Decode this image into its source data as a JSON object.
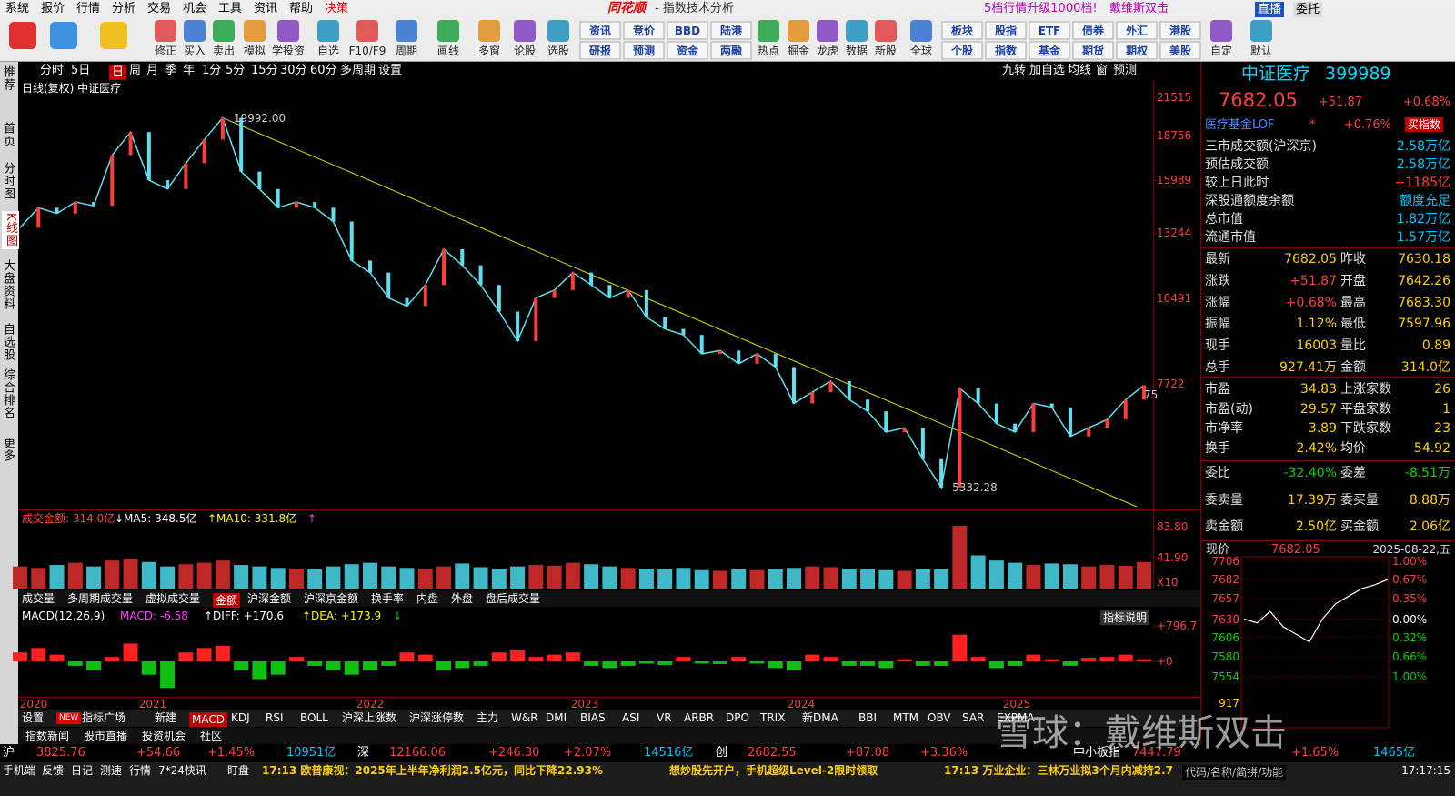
{
  "menu": {
    "items": [
      "系统",
      "报价",
      "行情",
      "分析",
      "交易",
      "机会",
      "工具",
      "资讯",
      "帮助",
      "决策"
    ],
    "logo": "同花顺",
    "title": "- 指数技术分析",
    "promo": "5档行情升级1000档!",
    "user": "戴维斯双击",
    "live": "直播",
    "trade": "委托"
  },
  "toolbar": {
    "tools": [
      "修正",
      "买入",
      "卖出",
      "模拟",
      "学投资",
      "自选",
      "F10/F9",
      "周期",
      "画线",
      "多窗",
      "论股",
      "选股"
    ],
    "grid1": [
      [
        "资讯",
        "竞价",
        "BBD",
        "陆港"
      ],
      [
        "研报",
        "预测",
        "资金",
        "两融"
      ]
    ],
    "tools2": [
      "热点",
      "掘金",
      "龙虎",
      "数据",
      "新股",
      "全球"
    ],
    "grid2": [
      [
        "板块",
        "股指",
        "ETF",
        "债券",
        "外汇",
        "港股"
      ],
      [
        "个股",
        "指数",
        "基金",
        "期货",
        "期权",
        "美股"
      ]
    ],
    "tools3": [
      "自定",
      "默认"
    ]
  },
  "side_tabs": [
    "推荐",
    "首页",
    "分时图",
    "K线图",
    "大盘资料",
    "自选股",
    "综合排名",
    "更多"
  ],
  "side_active": 3,
  "periods": {
    "items": [
      "分时",
      "5日",
      "日",
      "周",
      "月",
      "季",
      "年",
      "1分",
      "5分",
      "15分",
      "30分",
      "60分",
      "多周期",
      "设置"
    ],
    "active": 2,
    "right": [
      "九转",
      "加自选",
      "均线",
      "窗",
      "预测"
    ]
  },
  "kline": {
    "title": "日线(复权) 中证医疗",
    "ylog": true,
    "yticks": [
      21515,
      18756,
      15989,
      13244,
      10491,
      7722
    ],
    "closes": [
      13500,
      14500,
      14200,
      14800,
      14600,
      17500,
      19000,
      16000,
      15500,
      17000,
      18500,
      19992,
      16500,
      15500,
      14500,
      14800,
      14500,
      13800,
      12000,
      11500,
      10500,
      10200,
      11000,
      12500,
      11800,
      11000,
      10000,
      9000,
      10500,
      10800,
      11500,
      11000,
      10500,
      10800,
      9800,
      9400,
      9200,
      8600,
      8700,
      8300,
      8600,
      8200,
      7200,
      7500,
      7800,
      7300,
      7000,
      6500,
      6600,
      5900,
      5332,
      7600,
      7200,
      6700,
      6500,
      7200,
      7100,
      6400,
      6600,
      6800,
      7300,
      7682
    ],
    "high_label": "19992.00",
    "low_label": "5332.28",
    "last_label": "75",
    "years": [
      "2020",
      "2021",
      "2022",
      "2023",
      "2024",
      "2025"
    ]
  },
  "volume": {
    "legend": [
      {
        "text": "成交金额: 314.0亿",
        "color": "#ff4040"
      },
      {
        "text": "↓MA5: 348.5亿",
        "color": "#ffffff"
      },
      {
        "text": "↑MA10: 331.8亿",
        "color": "#ffff00"
      },
      {
        "text": "↑",
        "color": "#ff40ff"
      }
    ],
    "yticks": [
      {
        "value": 83.8,
        "label": "83.80"
      },
      {
        "value": 41.9,
        "label": "41.90"
      }
    ],
    "unit": "X10",
    "values": [
      30,
      28,
      32,
      35,
      30,
      38,
      40,
      36,
      30,
      33,
      35,
      38,
      32,
      30,
      28,
      27,
      26,
      30,
      33,
      35,
      30,
      28,
      26,
      30,
      34,
      29,
      27,
      30,
      32,
      31,
      35,
      33,
      30,
      28,
      27,
      26,
      28,
      25,
      24,
      26,
      25,
      27,
      28,
      30,
      29,
      27,
      26,
      25,
      24,
      26,
      26,
      85,
      45,
      38,
      35,
      32,
      34,
      33,
      30,
      32,
      31,
      36
    ],
    "tabs": [
      "成交量",
      "多周期成交量",
      "虚拟成交量",
      "金额",
      "沪深金额",
      "沪深京金额",
      "换手率",
      "内盘",
      "外盘",
      "盘后成交量"
    ],
    "active": 3
  },
  "macd": {
    "legend": [
      {
        "text": "MACD(12,26,9)",
        "color": "#ffffff"
      },
      {
        "text": "MACD: -6.58",
        "color": "#ff40ff"
      },
      {
        "text": "↑DIFF: +170.6",
        "color": "#ffffff"
      },
      {
        "text": "↑DEA: +173.9",
        "color": "#ffff00"
      },
      {
        "text": "↓",
        "color": "#00d200"
      }
    ],
    "help": "指标说明",
    "yticks": [
      {
        "value": 796.7,
        "label": "+796.7"
      },
      {
        "value": 0,
        "label": "+0"
      }
    ],
    "values": [
      200,
      300,
      150,
      -100,
      -200,
      100,
      400,
      -300,
      -600,
      200,
      300,
      350,
      -200,
      -400,
      -300,
      100,
      -100,
      -200,
      -300,
      -200,
      -100,
      200,
      150,
      -200,
      -150,
      -100,
      200,
      250,
      100,
      150,
      200,
      -100,
      -150,
      -100,
      -50,
      -80,
      100,
      -50,
      -60,
      100,
      -50,
      -150,
      -200,
      150,
      100,
      -100,
      -100,
      -150,
      50,
      -100,
      -100,
      600,
      100,
      -150,
      -100,
      150,
      50,
      -100,
      80,
      100,
      150,
      50
    ]
  },
  "indicators": {
    "settings": "设置",
    "badge": "NEW",
    "square": "指标广场",
    "create": "新建",
    "tabs": [
      "MACD",
      "KDJ",
      "RSI",
      "BOLL",
      "沪深上涨数",
      "沪深涨停数",
      "主力",
      "W&R",
      "DMI",
      "BIAS",
      "ASI",
      "VR",
      "ARBR",
      "DPO",
      "TRIX",
      "新DMA",
      "BBI",
      "MTM",
      "OBV",
      "SAR",
      "EXPMA"
    ],
    "active": 0,
    "sub_tabs": [
      "指数新闻",
      "股市直播",
      "投资机会",
      "社区"
    ]
  },
  "quote": {
    "name": "中证医疗",
    "code": "399989",
    "price": "7682.05",
    "change": "+51.87",
    "pct": "+0.68%"
  },
  "fund": {
    "name": "医疗基金LOF",
    "star": "*",
    "pct": "+0.76%",
    "button": "买指数"
  },
  "market": [
    [
      "三市成交额(沪深京)",
      "2.58万亿"
    ],
    [
      "预估成交额",
      "2.58万亿"
    ],
    [
      "较上日此时",
      "+1185亿"
    ],
    [
      "深股通额度余额",
      "额度充足"
    ],
    [
      "总市值",
      "1.82万亿"
    ],
    [
      "流通市值",
      "1.57万亿"
    ]
  ],
  "stats": [
    [
      "最新",
      "7682.05",
      "昨收",
      "7630.18"
    ],
    [
      "涨跌",
      "+51.87",
      "开盘",
      "7642.26"
    ],
    [
      "涨幅",
      "+0.68%",
      "最高",
      "7683.30"
    ],
    [
      "振幅",
      "1.12%",
      "最低",
      "7597.96"
    ],
    [
      "现手",
      "16003",
      "量比",
      "0.89"
    ],
    [
      "总手",
      "927.41万",
      "金额",
      "314.0亿"
    ]
  ],
  "stats2": [
    [
      "市盈",
      "34.83",
      "上涨家数",
      "26"
    ],
    [
      "市盈(动)",
      "29.57",
      "平盘家数",
      "1"
    ],
    [
      "市净率",
      "3.89",
      "下跌家数",
      "23"
    ],
    [
      "换手",
      "2.42%",
      "均价",
      "54.92"
    ]
  ],
  "orders": [
    [
      "委比",
      "-32.40%",
      "委差",
      "-8.51万"
    ],
    [
      "委卖量",
      "17.39万",
      "委买量",
      "8.88万"
    ],
    [
      "卖金额",
      "2.50亿",
      "买金额",
      "2.06亿"
    ]
  ],
  "intraday": {
    "label": "现价",
    "price": "7682.05",
    "date": "2025-08-22,五",
    "yticks": [
      7706,
      7682,
      7657,
      7630,
      7606,
      7580,
      7554
    ],
    "pct_labels": [
      "1.00%",
      "0.67%",
      "0.35%",
      "0.00%",
      "0.32%",
      "0.66%",
      "1.00%"
    ],
    "volume_label": "917",
    "values": [
      7630,
      7625,
      7640,
      7620,
      7610,
      7600,
      7630,
      7650,
      7660,
      7670,
      7675,
      7682.05
    ]
  },
  "tickers": [
    [
      "沪",
      "3825.76",
      "+54.66",
      "+1.45%",
      "10951亿"
    ],
    [
      "深",
      "12166.06",
      "+246.30",
      "+2.07%",
      "14516亿"
    ],
    [
      "创",
      "2682.55",
      "+87.08",
      "+3.36%"
    ],
    [
      "中小板指",
      "7447.79",
      "+1.65%",
      "1465亿"
    ]
  ],
  "status": {
    "items": [
      "手机端",
      "反馈",
      "日记",
      "测速",
      "行情",
      "7*24快讯",
      "盯盘"
    ],
    "news": [
      "17:13 欧普康视：2025年上半年净利润2.5亿元，同比下降22.93%",
      "想炒股先开户，手机超级Level-2限时领取",
      "17:13 万业企业：三林万业拟3个月内减持2.7"
    ],
    "search": "代码/名称/简拼/功能",
    "time": "17:17:15"
  },
  "watermark": "雪球：戴维斯双击"
}
